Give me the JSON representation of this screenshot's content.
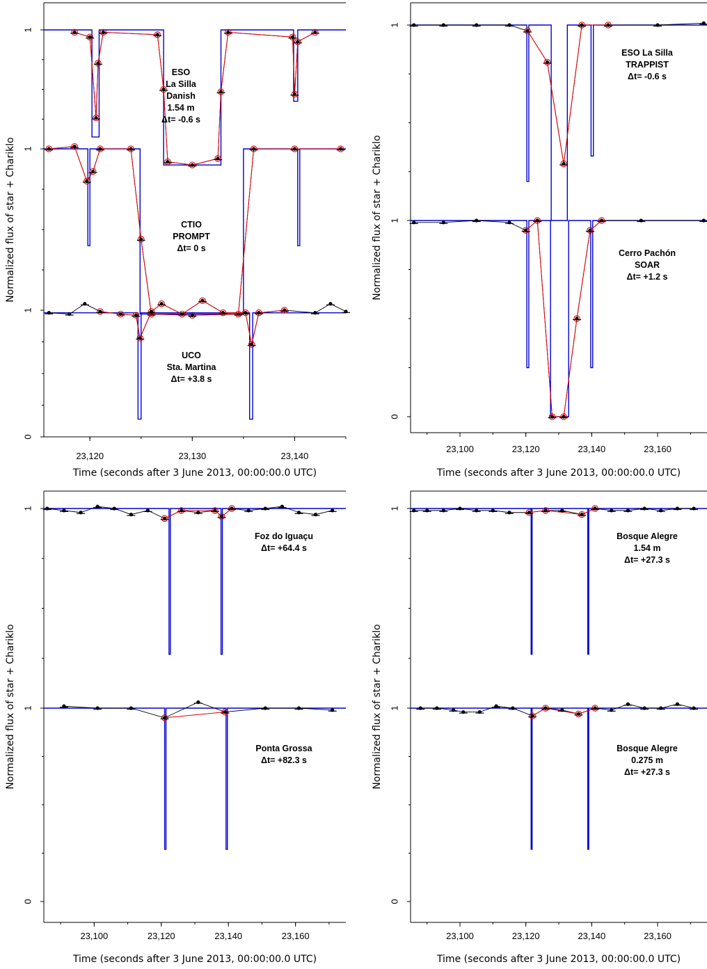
{
  "chart_data": [
    {
      "type": "scatter",
      "panel": "top-left",
      "xlabel": "Time (seconds after 3 June 2013, 00:00:00.0 UTC)",
      "ylabel": "Normalized flux of star + Chariklo",
      "xlim": [
        23115.5,
        23145
      ],
      "x_ticks": [
        23120,
        23130,
        23140
      ],
      "x_tick_labels": [
        "23,120",
        "23,130",
        "23,140"
      ],
      "y_ticks": [
        0,
        1,
        1.5,
        2.0
      ],
      "y_tick_labels": [
        "0",
        "1",
        "1",
        "1"
      ],
      "series_colors": {
        "observed": "#000000",
        "model_sampled": "#e00000",
        "model_profile": "#0000cc"
      },
      "stations": [
        {
          "annotation": [
            "ESO",
            "La Silla",
            "Danish",
            "1.54 m",
            "Δt= -0.6 s"
          ],
          "baseline": 2.0,
          "floor": 1.45,
          "sampling": "dense",
          "rings": [
            [
              23120.2,
              23120.9,
              1.55
            ],
            [
              23139.9,
              23140.3,
              1.7
            ]
          ],
          "body": [
            23127.2,
            23132.8
          ],
          "observed": [
            [
              23118.5,
              1.99
            ],
            [
              23120.0,
              1.97
            ],
            [
              23120.6,
              1.63
            ],
            [
              23120.8,
              1.86
            ],
            [
              23121.3,
              1.99
            ],
            [
              23126.6,
              1.98
            ],
            [
              23127.2,
              1.75
            ],
            [
              23127.6,
              1.46
            ],
            [
              23130.0,
              1.45
            ],
            [
              23132.5,
              1.47
            ],
            [
              23132.8,
              1.74
            ],
            [
              23133.5,
              1.99
            ],
            [
              23139.8,
              1.97
            ],
            [
              23140.0,
              1.73
            ],
            [
              23140.3,
              1.95
            ],
            [
              23142.0,
              1.99
            ]
          ]
        },
        {
          "annotation": [
            "CTIO",
            "PROMPT",
            "Δt= 0 s"
          ],
          "baseline": 1.5,
          "floor": 0.97,
          "sampling": 0.8,
          "rings": [
            [
              23119.8,
              23120.0,
              1.2
            ],
            [
              23140.3,
              23140.5,
              1.2
            ]
          ],
          "body": [
            23124.9,
            23135.0
          ],
          "observed": [
            [
              23116.0,
              1.5
            ],
            [
              23118.5,
              1.51
            ],
            [
              23119.7,
              1.4
            ],
            [
              23120.3,
              1.43
            ],
            [
              23121.0,
              1.5
            ],
            [
              23124.0,
              1.5
            ],
            [
              23125.0,
              1.22
            ],
            [
              23126.0,
              0.97
            ],
            [
              23130.0,
              0.96
            ],
            [
              23134.5,
              0.97
            ],
            [
              23136.0,
              1.5
            ],
            [
              23140.0,
              1.5
            ],
            [
              23144.5,
              1.5
            ]
          ]
        },
        {
          "annotation": [
            "UCO",
            "Sta. Martina",
            "Δt= +3.8 s"
          ],
          "baseline": 0.98,
          "floor": 0.14,
          "sampling": 1.5,
          "rings": [
            [
              23124.7,
              23125.0,
              0.14
            ],
            [
              23135.6,
              23135.9,
              0.14
            ]
          ],
          "body": null,
          "observed": [
            [
              23116.0,
              0.98
            ],
            [
              23118.0,
              0.97
            ],
            [
              23119.5,
              1.02
            ],
            [
              23121.0,
              0.99
            ],
            [
              23123.0,
              0.97
            ],
            [
              23124.5,
              0.96
            ],
            [
              23124.9,
              0.78
            ],
            [
              23126.0,
              0.99
            ],
            [
              23127.0,
              1.02
            ],
            [
              23129.0,
              0.97
            ],
            [
              23131.0,
              1.03
            ],
            [
              23133.0,
              0.98
            ],
            [
              23135.2,
              0.98
            ],
            [
              23135.8,
              0.73
            ],
            [
              23136.5,
              0.98
            ],
            [
              23139.0,
              1.0
            ],
            [
              23142.0,
              0.98
            ],
            [
              23143.5,
              1.02
            ],
            [
              23145.0,
              0.99
            ]
          ]
        }
      ]
    },
    {
      "type": "scatter",
      "panel": "top-right",
      "xlabel": "Time (seconds after 3 June 2013, 00:00:00.0 UTC)",
      "ylabel": "Normalized flux of star + Chariklo",
      "xlim": [
        23085,
        23175
      ],
      "x_ticks": [
        23100,
        23120,
        23140,
        23160
      ],
      "x_tick_labels": [
        "23,100",
        "23,120",
        "23,140",
        "23,160"
      ],
      "y_ticks": [
        0,
        1,
        2
      ],
      "y_tick_labels": [
        "0",
        "1",
        "1"
      ],
      "series_colors": {
        "observed": "#000000",
        "model_sampled": "#e00000",
        "model_profile": "#0000cc"
      },
      "stations": [
        {
          "annotation": [
            "ESO La Silla",
            "TRAPPIST",
            "Δt= -0.6 s"
          ],
          "baseline": 2.0,
          "floor": 1.0,
          "sampling": 3.0,
          "rings": [
            [
              23120.3,
              23120.9,
              1.2
            ],
            [
              23139.8,
              23140.5,
              1.33
            ]
          ],
          "body": [
            23127.7,
            23132.6
          ],
          "observed": [
            [
              23086.0,
              2.0
            ],
            [
              23095.0,
              2.0
            ],
            [
              23105.0,
              2.0
            ],
            [
              23115.0,
              2.0
            ],
            [
              23120.5,
              1.97
            ],
            [
              23126.5,
              1.81
            ],
            [
              23131.5,
              1.29
            ],
            [
              23137.0,
              2.0
            ],
            [
              23145.0,
              2.0
            ],
            [
              23160.0,
              2.0
            ],
            [
              23174.0,
              2.01
            ]
          ]
        },
        {
          "annotation": [
            "Cerro Pachón",
            "SOAR",
            "Δt= +1.2 s"
          ],
          "baseline": 1.0,
          "floor": 0.0,
          "sampling": 4.0,
          "rings": [
            [
              23120.3,
              23120.9,
              0.25
            ],
            [
              23139.7,
              23140.3,
              0.25
            ]
          ],
          "body": [
            23127.5,
            23133.0
          ],
          "observed": [
            [
              23086.0,
              0.99
            ],
            [
              23095.0,
              0.99
            ],
            [
              23105.0,
              1.0
            ],
            [
              23115.0,
              0.99
            ],
            [
              23120.0,
              0.95
            ],
            [
              23123.5,
              1.0
            ],
            [
              23128.0,
              0.0
            ],
            [
              23131.5,
              0.0
            ],
            [
              23135.5,
              0.5
            ],
            [
              23139.5,
              0.95
            ],
            [
              23143.0,
              1.0
            ],
            [
              23155.0,
              1.0
            ],
            [
              23174.0,
              1.0
            ]
          ]
        }
      ]
    },
    {
      "type": "scatter",
      "panel": "bottom-left",
      "xlabel": "Time (seconds after 3 June 2013, 00:00:00.0 UTC)",
      "ylabel": "Normalized flux of star + Chariklo",
      "xlim": [
        23085,
        23175
      ],
      "x_ticks": [
        23100,
        23120,
        23140,
        23160
      ],
      "x_tick_labels": [
        "23,100",
        "23,120",
        "23,140",
        "23,160"
      ],
      "y_ticks": [
        0,
        1,
        2
      ],
      "y_tick_labels": [
        "0",
        "1",
        "1"
      ],
      "series_colors": {
        "observed": "#000000",
        "model_sampled": "#e00000",
        "model_profile": "#0000cc"
      },
      "stations": [
        {
          "annotation": [
            "Foz do Iguaçu",
            "Δt= +64.4 s"
          ],
          "baseline": 2.0,
          "floor": 1.45,
          "sampling": 5.0,
          "rings": [
            [
              23122.3,
              23122.7,
              1.27
            ],
            [
              23137.8,
              23138.2,
              1.27
            ]
          ],
          "body": null,
          "observed": [
            [
              23086.0,
              2.0
            ],
            [
              23091.0,
              1.99
            ],
            [
              23096.0,
              1.98
            ],
            [
              23101.0,
              2.01
            ],
            [
              23106.0,
              2.0
            ],
            [
              23111.0,
              1.97
            ],
            [
              23116.0,
              1.99
            ],
            [
              23121.0,
              1.95
            ],
            [
              23126.0,
              1.99
            ],
            [
              23131.0,
              1.98
            ],
            [
              23136.0,
              1.99
            ],
            [
              23138.0,
              1.96
            ],
            [
              23141.0,
              2.0
            ],
            [
              23146.0,
              1.99
            ],
            [
              23151.0,
              2.0
            ],
            [
              23156.0,
              2.01
            ],
            [
              23161.0,
              1.98
            ],
            [
              23166.0,
              1.97
            ],
            [
              23171.0,
              1.99
            ]
          ]
        },
        {
          "annotation": [
            "Ponta Grossa",
            "Δt= +82.3 s"
          ],
          "baseline": 1.0,
          "floor": 0.27,
          "sampling": 10.0,
          "rings": [
            [
              23121.0,
              23121.4,
              0.27
            ],
            [
              23139.3,
              23139.7,
              0.27
            ]
          ],
          "body": null,
          "observed": [
            [
              23091.0,
              1.01
            ],
            [
              23101.0,
              1.0
            ],
            [
              23111.0,
              1.0
            ],
            [
              23121.0,
              0.95
            ],
            [
              23131.0,
              1.03
            ],
            [
              23139.0,
              0.98
            ],
            [
              23151.0,
              1.0
            ],
            [
              23161.0,
              1.0
            ],
            [
              23171.0,
              0.99
            ]
          ]
        }
      ]
    },
    {
      "type": "scatter",
      "panel": "bottom-right",
      "xlabel": "Time (seconds after 3 June 2013, 00:00:00.0 UTC)",
      "ylabel": "Normalized flux of star + Chariklo",
      "xlim": [
        23085,
        23175
      ],
      "x_ticks": [
        23100,
        23120,
        23140,
        23160
      ],
      "x_tick_labels": [
        "23,100",
        "23,120",
        "23,140",
        "23,160"
      ],
      "y_ticks": [
        0,
        1,
        2
      ],
      "y_tick_labels": [
        "0",
        "1",
        "1"
      ],
      "series_colors": {
        "observed": "#000000",
        "model_sampled": "#e00000",
        "model_profile": "#0000cc"
      },
      "stations": [
        {
          "annotation": [
            "Bosque Alegre",
            "1.54 m",
            "Δt= +27.3 s"
          ],
          "baseline": 2.0,
          "floor": 1.27,
          "sampling": 2.0,
          "rings": [
            [
              23121.6,
              23121.9,
              1.27
            ],
            [
              23138.8,
              23139.1,
              1.27
            ]
          ],
          "body": null,
          "observed": [
            [
              23086.0,
              1.99
            ],
            [
              23090.0,
              1.99
            ],
            [
              23095.0,
              1.99
            ],
            [
              23100.0,
              2.0
            ],
            [
              23105.0,
              1.99
            ],
            [
              23110.0,
              1.99
            ],
            [
              23115.0,
              1.98
            ],
            [
              23121.0,
              1.98
            ],
            [
              23126.0,
              1.99
            ],
            [
              23131.0,
              1.99
            ],
            [
              23137.0,
              1.97
            ],
            [
              23141.0,
              2.0
            ],
            [
              23146.0,
              1.99
            ],
            [
              23151.0,
              1.99
            ],
            [
              23156.0,
              2.0
            ],
            [
              23161.0,
              1.99
            ],
            [
              23166.0,
              2.0
            ],
            [
              23171.0,
              2.0
            ]
          ]
        },
        {
          "annotation": [
            "Bosque Alegre",
            "0.275 m",
            "Δt= +27.3 s"
          ],
          "baseline": 1.0,
          "floor": 0.27,
          "sampling": 4.0,
          "rings": [
            [
              23121.6,
              23121.9,
              0.27
            ],
            [
              23138.8,
              23139.1,
              0.27
            ]
          ],
          "body": null,
          "observed": [
            [
              23088.0,
              1.0
            ],
            [
              23093.0,
              1.0
            ],
            [
              23098.0,
              0.99
            ],
            [
              23101.0,
              0.98
            ],
            [
              23106.0,
              0.98
            ],
            [
              23111.0,
              1.01
            ],
            [
              23116.0,
              1.0
            ],
            [
              23122.0,
              0.96
            ],
            [
              23126.0,
              1.0
            ],
            [
              23131.0,
              0.99
            ],
            [
              23136.0,
              0.97
            ],
            [
              23141.0,
              1.0
            ],
            [
              23146.0,
              0.99
            ],
            [
              23151.0,
              1.02
            ],
            [
              23156.0,
              1.0
            ],
            [
              23161.0,
              1.0
            ],
            [
              23166.0,
              1.02
            ],
            [
              23171.0,
              1.0
            ]
          ]
        }
      ]
    }
  ]
}
